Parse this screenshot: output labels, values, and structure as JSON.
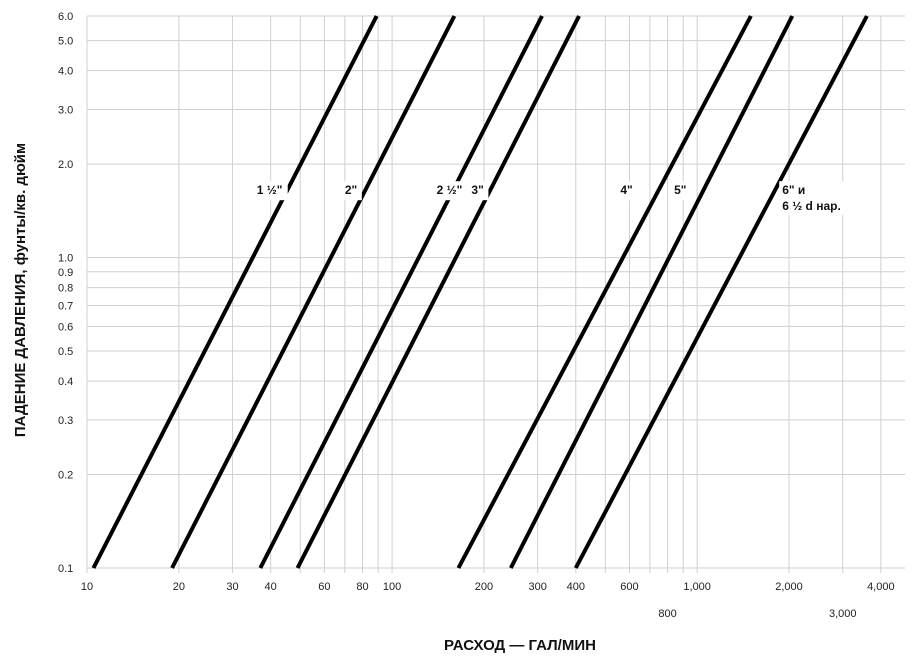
{
  "chart_data": {
    "type": "line",
    "title": "",
    "xlabel": "РАСХОД — ГАЛ/МИН",
    "ylabel": "ПАДЕНИЕ ДАВЛЕНИЯ, фунты/кв. дюйм",
    "x_scale": "log",
    "y_scale": "log",
    "xlim": [
      10,
      4800
    ],
    "ylim": [
      0.1,
      6.0
    ],
    "grid": true,
    "x_grid_values": [
      10,
      20,
      30,
      40,
      50,
      60,
      70,
      80,
      90,
      100,
      200,
      300,
      400,
      500,
      600,
      700,
      800,
      900,
      1000,
      2000,
      3000,
      4000
    ],
    "y_grid_values": [
      0.1,
      0.2,
      0.3,
      0.4,
      0.5,
      0.6,
      0.7,
      0.8,
      0.9,
      1.0,
      2.0,
      3.0,
      4.0,
      5.0,
      6.0
    ],
    "x_ticks_row1": [
      {
        "value": 10,
        "label": "10"
      },
      {
        "value": 20,
        "label": "20"
      },
      {
        "value": 30,
        "label": "30"
      },
      {
        "value": 40,
        "label": "40"
      },
      {
        "value": 60,
        "label": "60"
      },
      {
        "value": 80,
        "label": "80"
      },
      {
        "value": 100,
        "label": "100"
      },
      {
        "value": 200,
        "label": "200"
      },
      {
        "value": 300,
        "label": "300"
      },
      {
        "value": 400,
        "label": "400"
      },
      {
        "value": 600,
        "label": "600"
      },
      {
        "value": 1000,
        "label": "1,000"
      },
      {
        "value": 2000,
        "label": "2,000"
      },
      {
        "value": 4000,
        "label": "4,000"
      }
    ],
    "x_ticks_row2": [
      {
        "value": 800,
        "label": "800"
      },
      {
        "value": 3000,
        "label": "3,000"
      }
    ],
    "y_ticks": [
      {
        "value": 0.1,
        "label": "0.1"
      },
      {
        "value": 0.2,
        "label": "0.2"
      },
      {
        "value": 0.3,
        "label": "0.3"
      },
      {
        "value": 0.4,
        "label": "0.4"
      },
      {
        "value": 0.5,
        "label": "0.5"
      },
      {
        "value": 0.6,
        "label": "0.6"
      },
      {
        "value": 0.7,
        "label": "0.7"
      },
      {
        "value": 0.8,
        "label": "0.8"
      },
      {
        "value": 0.9,
        "label": "0.9"
      },
      {
        "value": 1.0,
        "label": "1.0"
      },
      {
        "value": 2.0,
        "label": "2.0"
      },
      {
        "value": 3.0,
        "label": "3.0"
      },
      {
        "value": 4.0,
        "label": "4.0"
      },
      {
        "value": 5.0,
        "label": "5.0"
      },
      {
        "value": 6.0,
        "label": "6.0"
      }
    ],
    "series": [
      {
        "name": "1 ½\"",
        "label_lines": [
          "1 ½\""
        ],
        "points": [
          [
            10.5,
            0.1
          ],
          [
            89,
            6.0
          ]
        ],
        "label_at": [
          36,
          1.6
        ]
      },
      {
        "name": "2\"",
        "label_lines": [
          "2\""
        ],
        "points": [
          [
            19,
            0.1
          ],
          [
            160,
            6.0
          ]
        ],
        "label_at": [
          70,
          1.6
        ]
      },
      {
        "name": "2 ½\"",
        "label_lines": [
          "2 ½\""
        ],
        "points": [
          [
            37,
            0.1
          ],
          [
            310,
            6.0
          ]
        ],
        "label_at": [
          140,
          1.6
        ]
      },
      {
        "name": "3\"",
        "label_lines": [
          "3\""
        ],
        "points": [
          [
            49,
            0.1
          ],
          [
            410,
            6.0
          ]
        ],
        "label_at": [
          182,
          1.6
        ]
      },
      {
        "name": "4\"",
        "label_lines": [
          "4\""
        ],
        "points": [
          [
            165,
            0.1
          ],
          [
            1500,
            6.0
          ]
        ],
        "label_at": [
          560,
          1.6
        ]
      },
      {
        "name": "5\"",
        "label_lines": [
          "5\""
        ],
        "points": [
          [
            245,
            0.1
          ],
          [
            2050,
            6.0
          ]
        ],
        "label_at": [
          840,
          1.6
        ]
      },
      {
        "name": "6\" и 6 ½ d нар.",
        "label_lines": [
          "6\" и",
          "6 ½ d нар."
        ],
        "points": [
          [
            400,
            0.1
          ],
          [
            3600,
            6.0
          ]
        ],
        "label_at": [
          1900,
          1.6
        ]
      }
    ]
  }
}
